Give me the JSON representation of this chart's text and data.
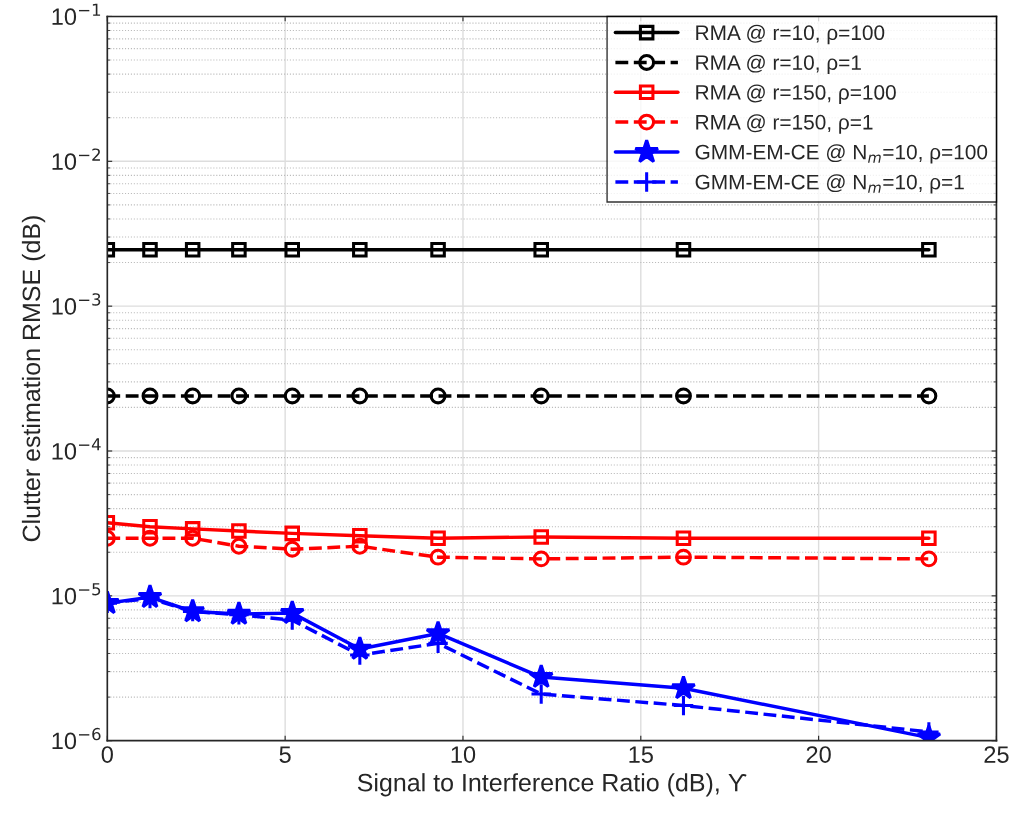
{
  "chart_data": {
    "type": "line",
    "xlabel": "Signal to Interference Ratio (dB), ϒ",
    "ylabel": "Clutter estimation RMSE (dB)",
    "x": [
      0,
      1.2,
      2.4,
      3.7,
      5.2,
      7.1,
      9.3,
      12.2,
      16.2,
      23.1
    ],
    "series": [
      {
        "name": "RMA @ r=10, ρ=100",
        "color": "#000000",
        "marker": "square",
        "line_style": "solid",
        "values": [
          0.00245,
          0.00245,
          0.00245,
          0.00245,
          0.00245,
          0.00245,
          0.00245,
          0.00245,
          0.00245,
          0.00245
        ]
      },
      {
        "name": "RMA @ r=10, ρ=1",
        "color": "#000000",
        "marker": "circle",
        "line_style": "dashed",
        "values": [
          0.00024,
          0.00024,
          0.00024,
          0.00024,
          0.00024,
          0.00024,
          0.00024,
          0.00024,
          0.00024,
          0.00024
        ]
      },
      {
        "name": "RMA @ r=150, ρ=100",
        "color": "#ff0000",
        "marker": "square",
        "line_style": "solid",
        "values": [
          3.2e-05,
          3e-05,
          2.9e-05,
          2.8e-05,
          2.7e-05,
          2.6e-05,
          2.5e-05,
          2.55e-05,
          2.5e-05,
          2.5e-05
        ]
      },
      {
        "name": "RMA @ r=150, ρ=1",
        "color": "#ff0000",
        "marker": "circle",
        "line_style": "dashed",
        "values": [
          2.5e-05,
          2.5e-05,
          2.5e-05,
          2.2e-05,
          2.1e-05,
          2.2e-05,
          1.85e-05,
          1.8e-05,
          1.85e-05,
          1.8e-05
        ]
      },
      {
        "name": "GMM-EM-CE @ N$_{m}$=10, ρ=100",
        "color": "#0000ff",
        "marker": "star",
        "line_style": "solid",
        "values": [
          8.9e-06,
          9.8e-06,
          7.8e-06,
          7.5e-06,
          7.6e-06,
          4.3e-06,
          5.5e-06,
          2.75e-06,
          2.3e-06,
          1.05e-06
        ]
      },
      {
        "name": "GMM-EM-CE @ N$_{m}$=10, ρ=1",
        "color": "#0000ff",
        "marker": "cross",
        "line_style": "dashed",
        "values": [
          8.9e-06,
          9.6e-06,
          7.8e-06,
          7.4e-06,
          6.8e-06,
          3.9e-06,
          4.7e-06,
          2.1e-06,
          1.75e-06,
          1.15e-06
        ]
      }
    ],
    "log": "y",
    "xlim": [
      0,
      25
    ],
    "xticks": [
      0,
      5,
      10,
      15,
      20,
      25
    ],
    "ylim": [
      1e-06,
      0.1
    ],
    "yticks": [
      {
        "value": 1e-06,
        "label": "10$^{−6}$"
      },
      {
        "value": 1e-05,
        "label": "10$^{−5}$"
      },
      {
        "value": 0.0001,
        "label": "10$^{−4}$"
      },
      {
        "value": 0.001,
        "label": "10$^{−3}$"
      },
      {
        "value": 0.01,
        "label": "10$^{−2}$"
      },
      {
        "value": 0.1,
        "label": "10$^{−1}$"
      }
    ],
    "grid": true,
    "legend": "top right"
  }
}
